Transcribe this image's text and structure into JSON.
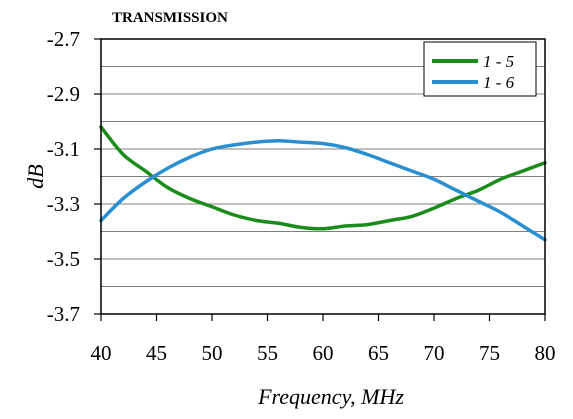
{
  "chart_data": {
    "type": "line",
    "title": "TRANSMISSION",
    "xlabel": "Frequency, MHz",
    "ylabel": "dB",
    "xlim": [
      40,
      80
    ],
    "ylim": [
      -3.7,
      -2.7
    ],
    "xticks": [
      40,
      45,
      50,
      55,
      60,
      65,
      70,
      75,
      80
    ],
    "yticks": [
      -2.7,
      -2.9,
      -3.1,
      -3.3,
      -3.5,
      -3.7
    ],
    "xtick_labels": [
      "40",
      "45",
      "50",
      "55",
      "60",
      "65",
      "70",
      "75",
      "80"
    ],
    "ytick_labels": [
      "-2.7",
      "-2.9",
      "-3.1",
      "-3.3",
      "-3.5",
      "-3.7"
    ],
    "grid": "horizontal",
    "legend_position": "top-right",
    "series": [
      {
        "name": "1 - 5",
        "color": "#1a8c1a",
        "x": [
          40,
          42,
          44,
          46,
          48,
          50,
          52,
          54,
          56,
          58,
          60,
          62,
          64,
          66,
          68,
          70,
          72,
          74,
          76,
          78,
          80
        ],
        "y": [
          -3.02,
          -3.12,
          -3.18,
          -3.24,
          -3.28,
          -3.31,
          -3.34,
          -3.36,
          -3.37,
          -3.385,
          -3.39,
          -3.38,
          -3.375,
          -3.36,
          -3.345,
          -3.315,
          -3.28,
          -3.25,
          -3.21,
          -3.18,
          -3.15
        ]
      },
      {
        "name": "1 - 6",
        "color": "#2a8fd0",
        "x": [
          40,
          42,
          44,
          46,
          48,
          50,
          52,
          54,
          56,
          58,
          60,
          62,
          64,
          66,
          68,
          70,
          72,
          74,
          76,
          78,
          80
        ],
        "y": [
          -3.36,
          -3.28,
          -3.22,
          -3.17,
          -3.13,
          -3.1,
          -3.085,
          -3.075,
          -3.07,
          -3.075,
          -3.08,
          -3.095,
          -3.12,
          -3.15,
          -3.18,
          -3.21,
          -3.25,
          -3.29,
          -3.33,
          -3.38,
          -3.43
        ]
      }
    ]
  }
}
